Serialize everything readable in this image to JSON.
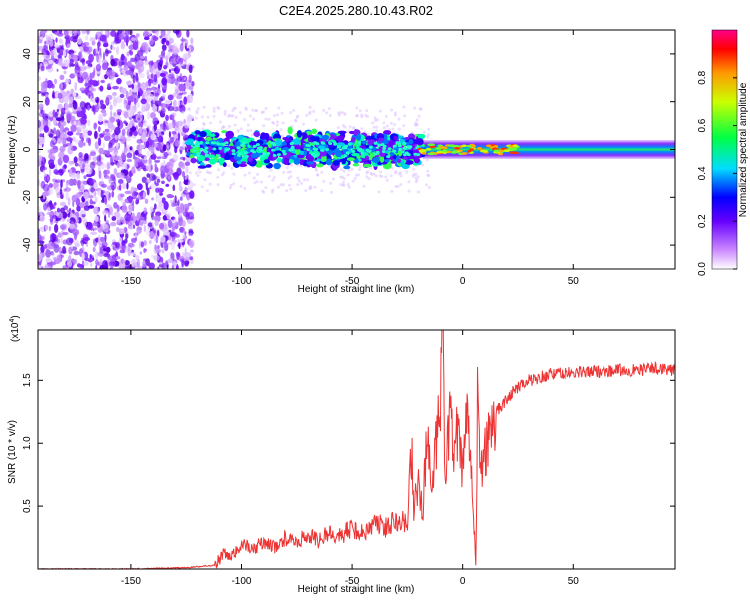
{
  "title": "C2E4.2025.280.10.43.R02",
  "chart_data": [
    {
      "type": "heatmap",
      "title": "C2E4.2025.280.10.43.R02",
      "xlabel": "Height of straight line (km)",
      "ylabel": "Frequency (Hz)",
      "xlim": [
        -192,
        96
      ],
      "ylim": [
        -50,
        50
      ],
      "xticks": [
        -150,
        -100,
        -50,
        0,
        50
      ],
      "yticks": [
        -40,
        -20,
        0,
        20,
        40
      ],
      "description_regions": [
        {
          "x_range": [
            -192,
            -122
          ],
          "content": "broadband scattered noise"
        },
        {
          "x_range": [
            -122,
            -18
          ],
          "content": "band around 0 Hz, width about ±8 Hz"
        },
        {
          "x_range": [
            -18,
            96
          ],
          "content": "narrow line around 0 Hz, width about ±3 Hz"
        }
      ],
      "colorbar": {
        "label": "Normalized spectral amplitude",
        "range": [
          0.0,
          1.0
        ],
        "ticks": [
          "0.0",
          "0.2",
          "0.4",
          "0.6",
          "0.8"
        ],
        "tick_values": [
          0.0,
          0.2,
          0.4,
          0.6,
          0.8
        ]
      }
    },
    {
      "type": "line",
      "xlabel": "Height of straight line (km)",
      "ylabel": "SNR (10 * v/v)",
      "multiplier_label_base": "(x10",
      "multiplier_label_exp": "4",
      "multiplier_label_close": ")",
      "xlim": [
        -192,
        96
      ],
      "ylim": [
        0,
        1.9
      ],
      "xticks": [
        -150,
        -100,
        -50,
        0,
        50
      ],
      "yticks": [
        0.5,
        1.0,
        1.5
      ],
      "ytick_labels": [
        "0.5",
        "1.0",
        "1.5"
      ],
      "color": "#ee3333",
      "series": [
        {
          "name": "SNR",
          "x": [
            -192,
            -150,
            -125,
            -112,
            -108,
            -105,
            -100,
            -95,
            -90,
            -85,
            -80,
            -75,
            -70,
            -65,
            -60,
            -55,
            -50,
            -45,
            -40,
            -35,
            -30,
            -25,
            -23,
            -22,
            -20,
            -18,
            -16,
            -14,
            -12,
            -10,
            -9,
            -8,
            -6,
            -4,
            -2,
            0,
            2,
            4,
            5,
            6,
            7,
            8,
            10,
            12,
            15,
            20,
            25,
            30,
            40,
            50,
            60,
            70,
            80,
            90,
            96
          ],
          "y": [
            0.0,
            0.0,
            0.01,
            0.03,
            0.12,
            0.08,
            0.2,
            0.15,
            0.22,
            0.17,
            0.25,
            0.2,
            0.28,
            0.22,
            0.3,
            0.26,
            0.33,
            0.28,
            0.38,
            0.32,
            0.42,
            0.36,
            0.95,
            0.45,
            0.7,
            0.48,
            1.05,
            0.55,
            0.95,
            1.3,
            1.85,
            0.8,
            1.2,
            0.9,
            1.1,
            0.75,
            1.2,
            0.9,
            0.4,
            0.05,
            1.8,
            0.7,
            0.9,
            1.1,
            1.25,
            1.35,
            1.45,
            1.5,
            1.55,
            1.56,
            1.57,
            1.58,
            1.58,
            1.6,
            1.57
          ]
        }
      ]
    }
  ]
}
